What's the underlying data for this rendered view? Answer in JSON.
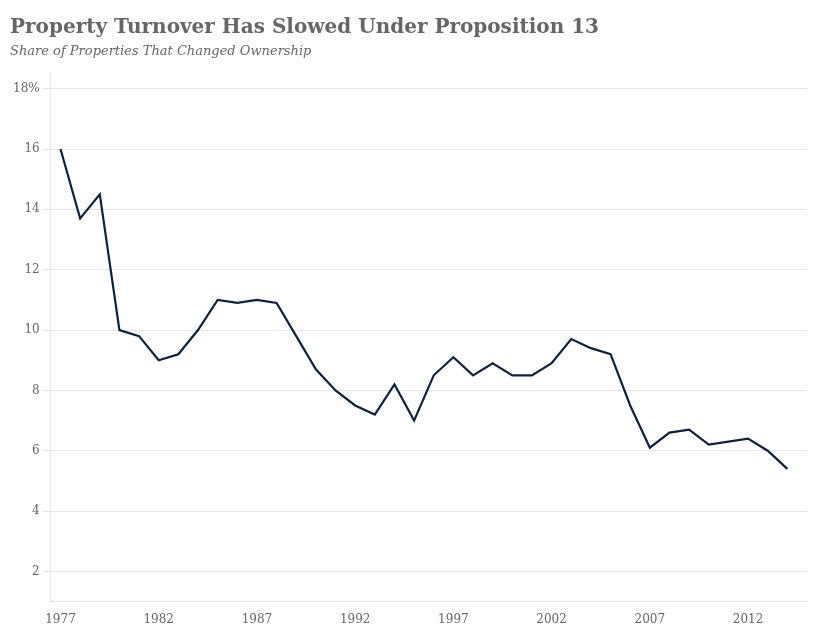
{
  "chart_data": {
    "type": "line",
    "title": "Property Turnover Has Slowed Under Proposition 13",
    "subtitle": "Share of Properties That Changed Ownership",
    "x": [
      1977,
      1978,
      1979,
      1980,
      1981,
      1982,
      1983,
      1984,
      1985,
      1986,
      1987,
      1988,
      1989,
      1990,
      1991,
      1992,
      1993,
      1994,
      1995,
      1996,
      1997,
      1998,
      1999,
      2000,
      2001,
      2002,
      2003,
      2004,
      2005,
      2006,
      2007,
      2008,
      2009,
      2010,
      2011,
      2012,
      2013,
      2014
    ],
    "values": [
      16.0,
      13.7,
      14.5,
      10.0,
      9.8,
      9.0,
      9.2,
      10.0,
      11.0,
      10.9,
      11.0,
      10.9,
      9.8,
      8.7,
      8.0,
      7.5,
      7.2,
      8.2,
      7.0,
      8.5,
      9.1,
      8.5,
      8.9,
      8.5,
      8.5,
      8.9,
      9.7,
      9.4,
      9.2,
      7.5,
      6.1,
      6.6,
      6.7,
      6.2,
      6.3,
      6.4,
      6.0,
      5.4
    ],
    "color": "#0d2240",
    "xlim": [
      1976.5,
      2015.0
    ],
    "xticks": [
      1977,
      1982,
      1987,
      1992,
      1997,
      2002,
      2007,
      2012
    ],
    "ylim": [
      1.0,
      18.5
    ],
    "yticks": [
      2,
      4,
      6,
      8,
      10,
      12,
      14,
      16,
      {
        "value": 18,
        "label": "18%"
      }
    ],
    "grid": true
  }
}
